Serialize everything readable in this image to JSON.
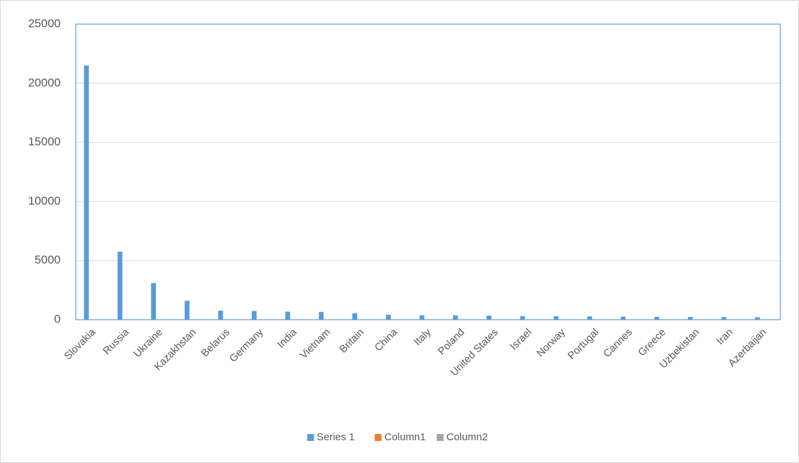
{
  "chart_data": {
    "type": "bar",
    "categories": [
      "Slovakia",
      "Russia",
      "Ukraine",
      "Kazakhstan",
      "Belarus",
      "Germany",
      "India",
      "Vietnam",
      "Britain",
      "China",
      "Italy",
      "Poland",
      "United States",
      "Israel",
      "Norway",
      "Portugal",
      "Cannes",
      "Greece",
      "Uzbekistan",
      "Iran",
      "Azerbaijan"
    ],
    "series": [
      {
        "name": "Series 1",
        "color": "#5b9bd5",
        "values": [
          21500,
          5750,
          3100,
          1600,
          760,
          730,
          680,
          660,
          550,
          420,
          370,
          360,
          340,
          300,
          290,
          280,
          260,
          240,
          230,
          220,
          210
        ]
      },
      {
        "name": "Column1",
        "color": "#ed7d31",
        "values": [
          null,
          null,
          null,
          null,
          null,
          null,
          null,
          null,
          null,
          null,
          null,
          null,
          null,
          null,
          null,
          null,
          null,
          null,
          null,
          null,
          null
        ]
      },
      {
        "name": "Column2",
        "color": "#a5a5a5",
        "values": [
          null,
          null,
          null,
          null,
          null,
          null,
          null,
          null,
          null,
          null,
          null,
          null,
          null,
          null,
          null,
          null,
          null,
          null,
          null,
          null,
          null
        ]
      }
    ],
    "ylim": [
      0,
      25000
    ],
    "yticks": [
      0,
      5000,
      10000,
      15000,
      20000,
      25000
    ],
    "grid": true,
    "legend": "bottom"
  }
}
